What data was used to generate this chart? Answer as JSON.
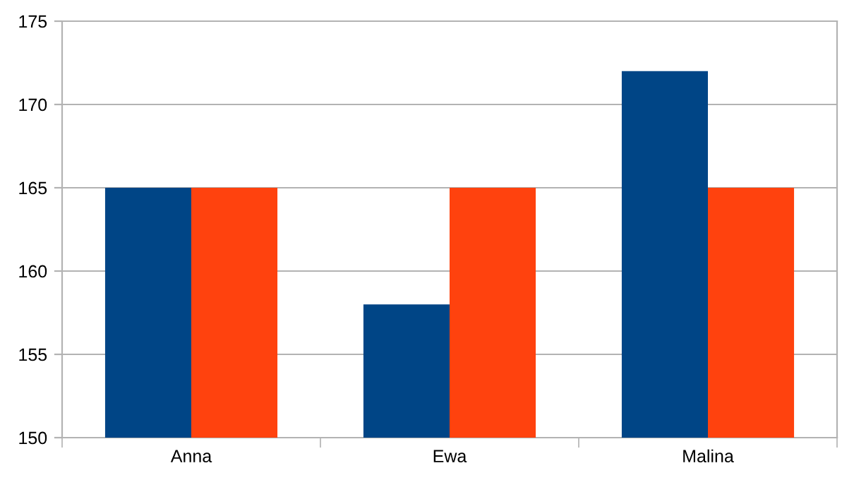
{
  "chart_data": {
    "type": "bar",
    "categories": [
      "Anna",
      "Ewa",
      "Malina"
    ],
    "series": [
      {
        "color": "#004586",
        "values": [
          165,
          158,
          172
        ]
      },
      {
        "color": "#ff420e",
        "values": [
          165,
          165,
          165
        ]
      }
    ],
    "ylim": [
      150,
      175
    ],
    "yticks": [
      150,
      155,
      160,
      165,
      170,
      175
    ],
    "grid": "y",
    "legend": false
  }
}
